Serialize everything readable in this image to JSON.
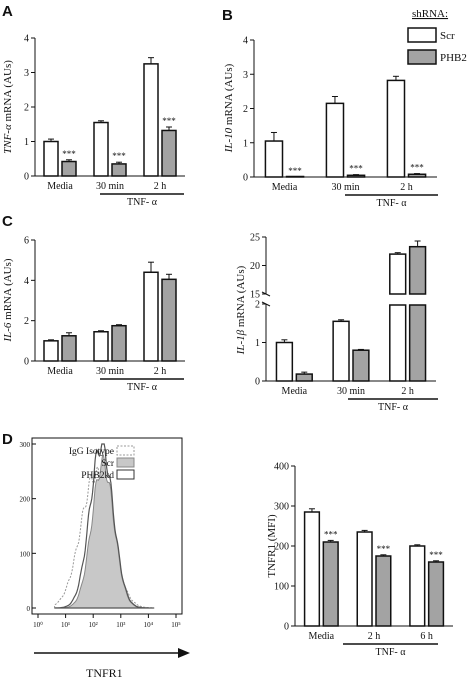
{
  "colors": {
    "scr_fill": "#ffffff",
    "phb2_fill": "#a3a3a3",
    "isotype_fill": "#ffffff",
    "scr_hist_fill": "#c8c8c8",
    "axis": "#111111"
  },
  "legend_top": {
    "title": "shRNA:",
    "items": [
      "Scr",
      "PHB2"
    ]
  },
  "legend_d": {
    "items": [
      "IgG Isotype",
      "Scr",
      "PHB2kd"
    ]
  },
  "chart_data": [
    {
      "id": "A",
      "panel": "A",
      "type": "bar",
      "ylabel_italic": "TNF-α",
      "ylabel_rest": " mRNA (AUs)",
      "ylim": [
        0,
        4
      ],
      "yticks": [
        "0",
        "1",
        "2",
        "3",
        "4"
      ],
      "categories": [
        "Media",
        "30 min",
        "2 h"
      ],
      "series": [
        {
          "name": "Scr",
          "values": [
            1.0,
            1.55,
            3.25
          ],
          "errors": [
            0.07,
            0.05,
            0.18
          ]
        },
        {
          "name": "PHB2",
          "values": [
            0.42,
            0.35,
            1.32
          ],
          "errors": [
            0.05,
            0.05,
            0.1
          ]
        }
      ],
      "sig": [
        "***",
        "***",
        "***"
      ],
      "group_label": "TNF- α"
    },
    {
      "id": "B",
      "panel": "B",
      "type": "bar",
      "ylabel_italic": "IL-10",
      "ylabel_rest": " mRNA (AUs)",
      "ylim": [
        0,
        4
      ],
      "yticks": [
        "0",
        "1",
        "2",
        "3",
        "4"
      ],
      "categories": [
        "Media",
        "30 min",
        "2 h"
      ],
      "series": [
        {
          "name": "Scr",
          "values": [
            1.05,
            2.15,
            2.82
          ],
          "errors": [
            0.25,
            0.2,
            0.12
          ]
        },
        {
          "name": "PHB2",
          "values": [
            0.0,
            0.05,
            0.08
          ],
          "errors": [
            0.0,
            0.02,
            0.02
          ]
        }
      ],
      "sig": [
        "***",
        "***",
        "***"
      ],
      "group_label": "TNF- α"
    },
    {
      "id": "C1",
      "panel": "C",
      "type": "bar",
      "ylabel_italic": "IL-6",
      "ylabel_rest": " mRNA (AUs)",
      "ylim": [
        0,
        6
      ],
      "yticks": [
        "0",
        "2",
        "4",
        "6"
      ],
      "categories": [
        "Media",
        "30 min",
        "2 h"
      ],
      "series": [
        {
          "name": "Scr",
          "values": [
            1.0,
            1.45,
            4.4
          ],
          "errors": [
            0.05,
            0.05,
            0.5
          ]
        },
        {
          "name": "PHB2",
          "values": [
            1.25,
            1.75,
            4.05
          ],
          "errors": [
            0.15,
            0.05,
            0.25
          ]
        }
      ],
      "group_label": "TNF- α"
    },
    {
      "id": "C2",
      "panel": "",
      "type": "bar",
      "ylabel_italic": "IL-1β",
      "ylabel_rest": " mRNA (AUs)",
      "axis_break": true,
      "lower_ylim": [
        0,
        2
      ],
      "lower_yticks": [
        "0",
        "1",
        "2"
      ],
      "upper_ylim": [
        15,
        25
      ],
      "upper_yticks": [
        "15",
        "20",
        "25"
      ],
      "categories": [
        "Media",
        "30 min",
        "2 h"
      ],
      "series": [
        {
          "name": "Scr",
          "values": [
            1.0,
            1.55,
            22.0
          ],
          "errors": [
            0.07,
            0.04,
            0.25
          ]
        },
        {
          "name": "PHB2",
          "values": [
            0.18,
            0.8,
            23.3
          ],
          "errors": [
            0.05,
            0.02,
            1.0
          ]
        }
      ],
      "group_label": "TNF- α"
    },
    {
      "id": "D2",
      "panel": "",
      "type": "bar",
      "ylabel": "TNFR1 (MFI)",
      "ylim": [
        0,
        400
      ],
      "yticks": [
        "0",
        "100",
        "200",
        "300",
        "400"
      ],
      "categories": [
        "Media",
        "2 h",
        "6 h"
      ],
      "series": [
        {
          "name": "Scr",
          "values": [
            285,
            235,
            200
          ],
          "errors": [
            8,
            4,
            3
          ]
        },
        {
          "name": "PHB2",
          "values": [
            210,
            175,
            160
          ],
          "errors": [
            4,
            3,
            3
          ]
        }
      ],
      "sig": [
        "***",
        "***",
        "***"
      ],
      "group_label": "TNF- α"
    }
  ],
  "histogram": {
    "panel": "D",
    "type": "histogram",
    "xlabel": "TNFR1",
    "ylim": [
      0,
      300
    ],
    "yticks": [
      "0",
      "100",
      "200",
      "300"
    ],
    "xticks": [
      "10⁰",
      "10¹",
      "10²",
      "10³",
      "10⁴",
      "10⁵"
    ],
    "log_x": true,
    "series": [
      {
        "name": "IgG Isotype",
        "peak_log10": 2.1,
        "height": 245,
        "width": 0.55,
        "style": "dotted"
      },
      {
        "name": "Scr",
        "peak_log10": 2.35,
        "height": 265,
        "width": 0.4,
        "style": "filled"
      },
      {
        "name": "PHB2kd",
        "peak_log10": 2.3,
        "height": 300,
        "width": 0.42,
        "style": "solid"
      }
    ]
  }
}
